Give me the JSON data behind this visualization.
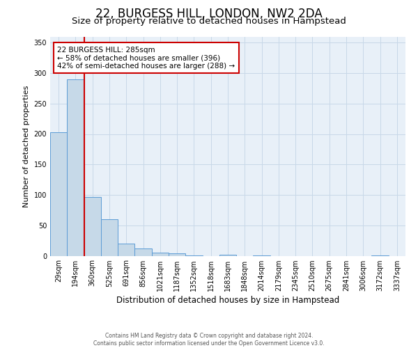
{
  "title": "22, BURGESS HILL, LONDON, NW2 2DA",
  "subtitle": "Size of property relative to detached houses in Hampstead",
  "xlabel": "Distribution of detached houses by size in Hampstead",
  "ylabel": "Number of detached properties",
  "categories": [
    "29sqm",
    "194sqm",
    "360sqm",
    "525sqm",
    "691sqm",
    "856sqm",
    "1021sqm",
    "1187sqm",
    "1352sqm",
    "1518sqm",
    "1683sqm",
    "1848sqm",
    "2014sqm",
    "2179sqm",
    "2345sqm",
    "2510sqm",
    "2675sqm",
    "2841sqm",
    "3006sqm",
    "3172sqm",
    "3337sqm"
  ],
  "values": [
    203,
    290,
    97,
    60,
    20,
    12,
    5,
    4,
    1,
    0,
    2,
    0,
    1,
    0,
    0,
    0,
    0,
    0,
    0,
    1,
    0
  ],
  "bar_color": "#c6d9e8",
  "bar_edgecolor": "#5b9bd5",
  "property_line_x": 1.5,
  "property_size": "285sqm",
  "annotation_text": "22 BURGESS HILL: 285sqm\n← 58% of detached houses are smaller (396)\n42% of semi-detached houses are larger (288) →",
  "annotation_box_color": "#ffffff",
  "annotation_edge_color": "#cc0000",
  "line_color": "#cc0000",
  "ylim": [
    0,
    360
  ],
  "yticks": [
    0,
    50,
    100,
    150,
    200,
    250,
    300,
    350
  ],
  "grid_color": "#c8d8e8",
  "bg_color": "#e8f0f8",
  "footer_line1": "Contains HM Land Registry data © Crown copyright and database right 2024.",
  "footer_line2": "Contains public sector information licensed under the Open Government Licence v3.0.",
  "title_fontsize": 12,
  "subtitle_fontsize": 9.5,
  "ylabel_fontsize": 8,
  "xlabel_fontsize": 8.5,
  "tick_fontsize": 7,
  "annotation_fontsize": 7.5,
  "footer_fontsize": 5.5
}
